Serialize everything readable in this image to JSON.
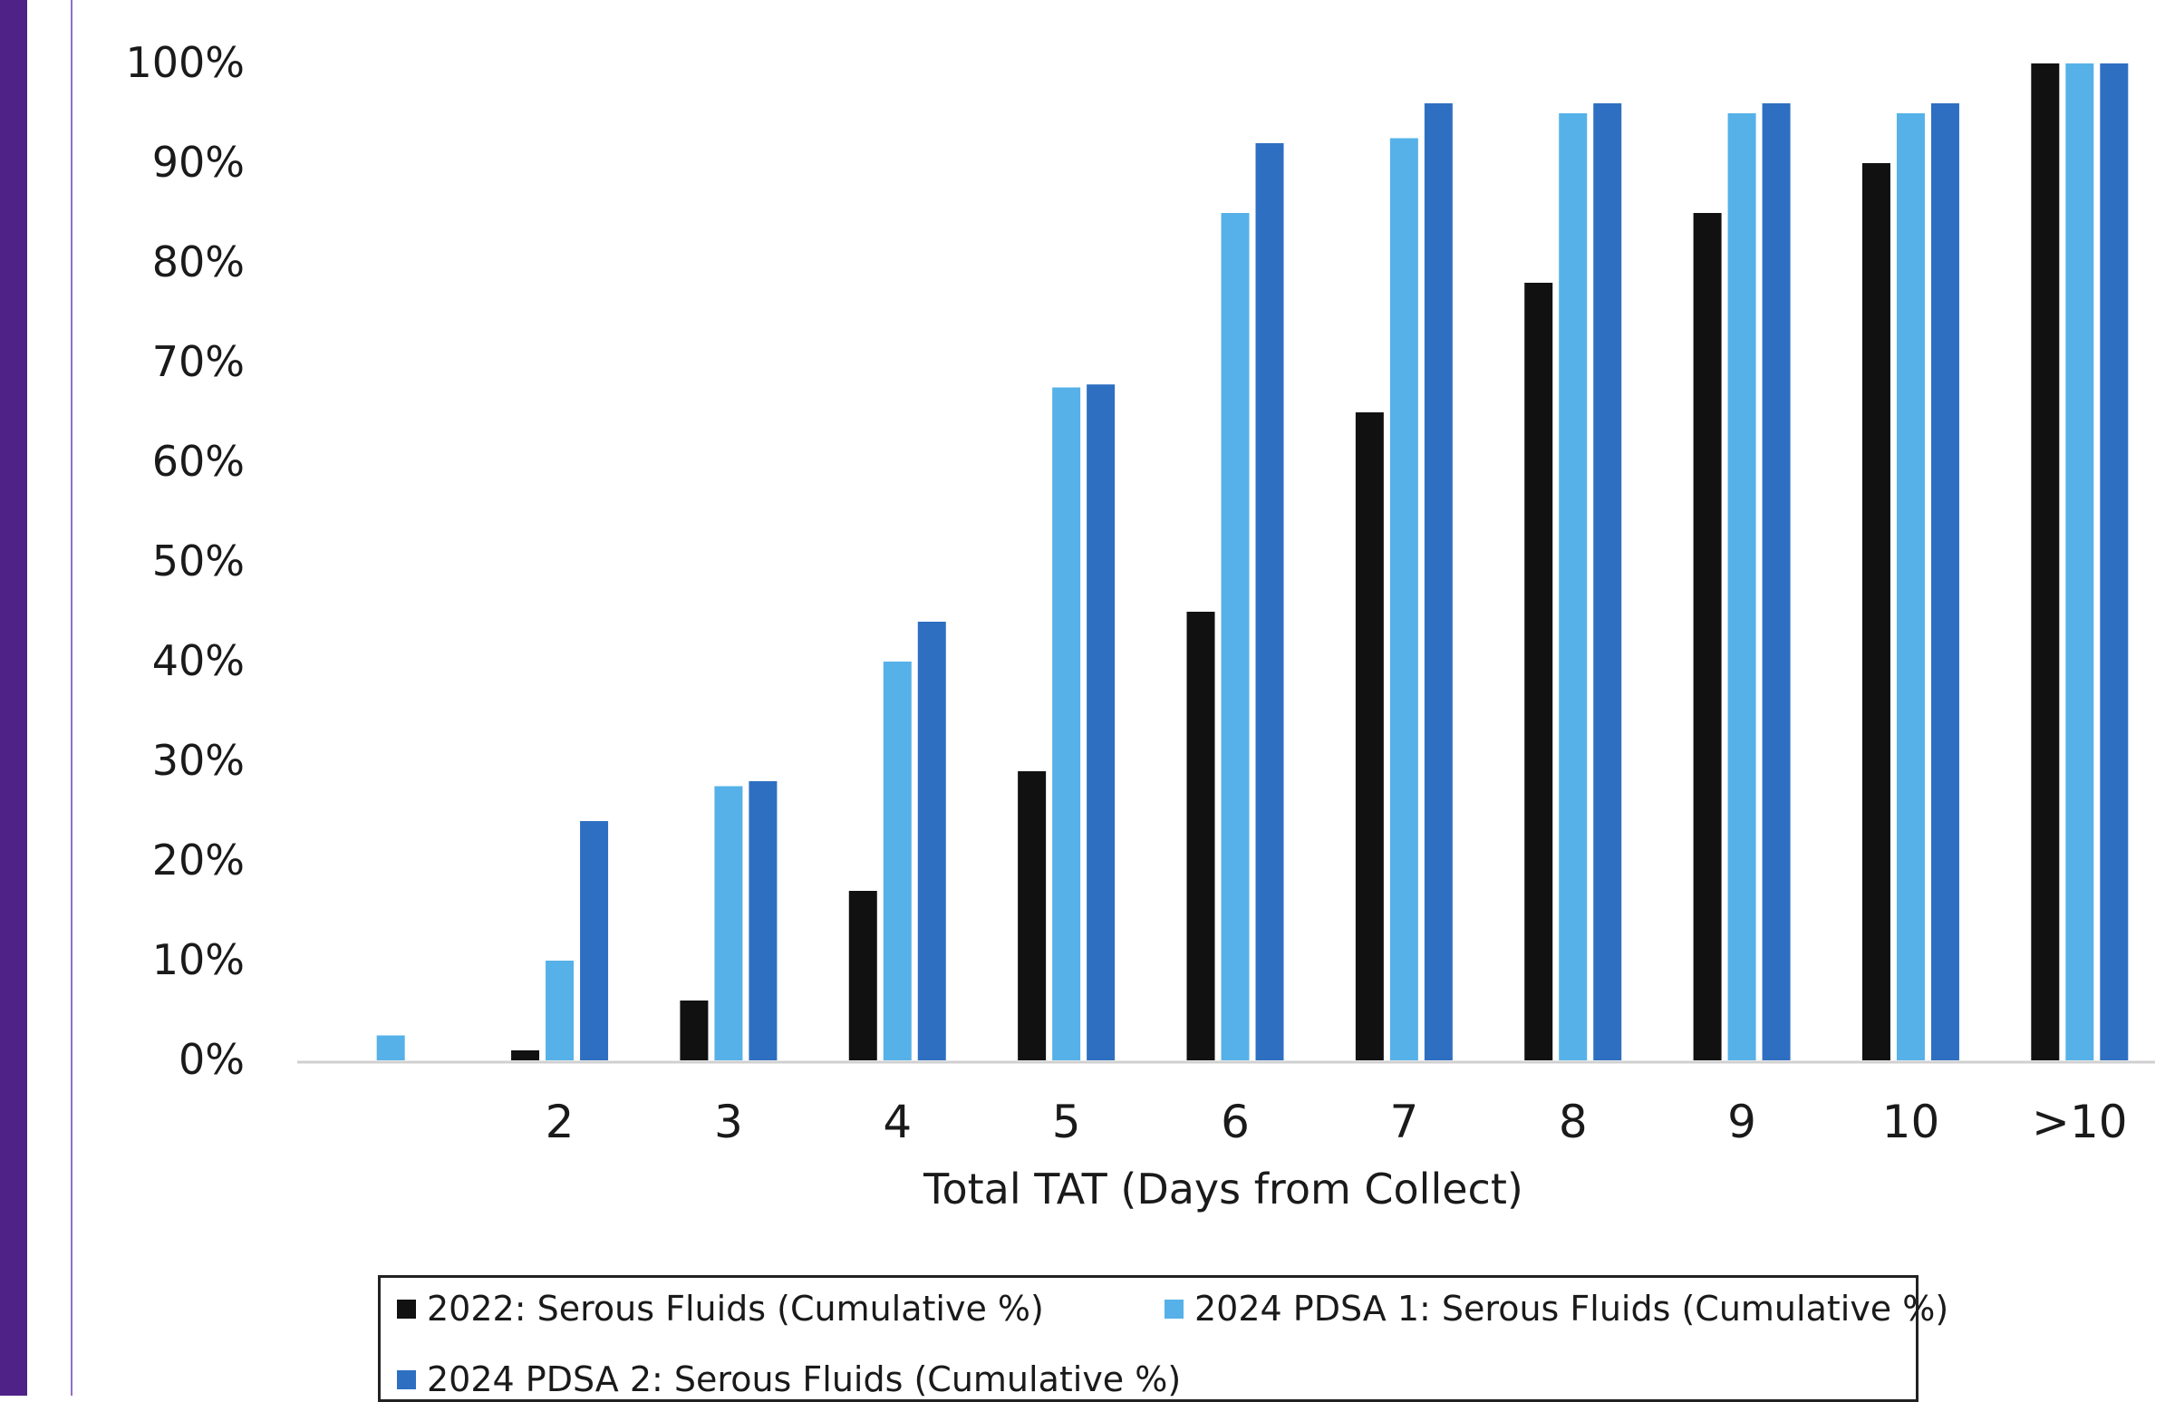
{
  "chart_data": {
    "type": "bar",
    "xlabel": "Total TAT (Days from Collect)",
    "ylabel": "",
    "ylim": [
      0,
      100
    ],
    "yticks": [
      "0%",
      "10%",
      "20%",
      "30%",
      "40%",
      "50%",
      "60%",
      "70%",
      "80%",
      "90%",
      "100%"
    ],
    "categories": [
      "",
      "2",
      "3",
      "4",
      "5",
      "6",
      "7",
      "8",
      "9",
      "10",
      ">10"
    ],
    "series": [
      {
        "name": "2022: Serous Fluids (Cumulative %)",
        "color": "#111111",
        "values": [
          0,
          1,
          6,
          17,
          29,
          45,
          65,
          78,
          85,
          90,
          100
        ]
      },
      {
        "name": "2024 PDSA 1: Serous Fluids (Cumulative %)",
        "color": "#56b1e8",
        "values": [
          2.5,
          10,
          27.5,
          40,
          67.5,
          85,
          92.5,
          95,
          95,
          95,
          100
        ]
      },
      {
        "name": "2024 PDSA 2: Serous Fluids (Cumulative %)",
        "color": "#2e6fc2",
        "values": [
          0,
          24,
          28,
          44,
          67.8,
          92,
          96,
          96,
          96,
          96,
          100
        ]
      }
    ],
    "grid": false,
    "legend_position": "bottom"
  }
}
